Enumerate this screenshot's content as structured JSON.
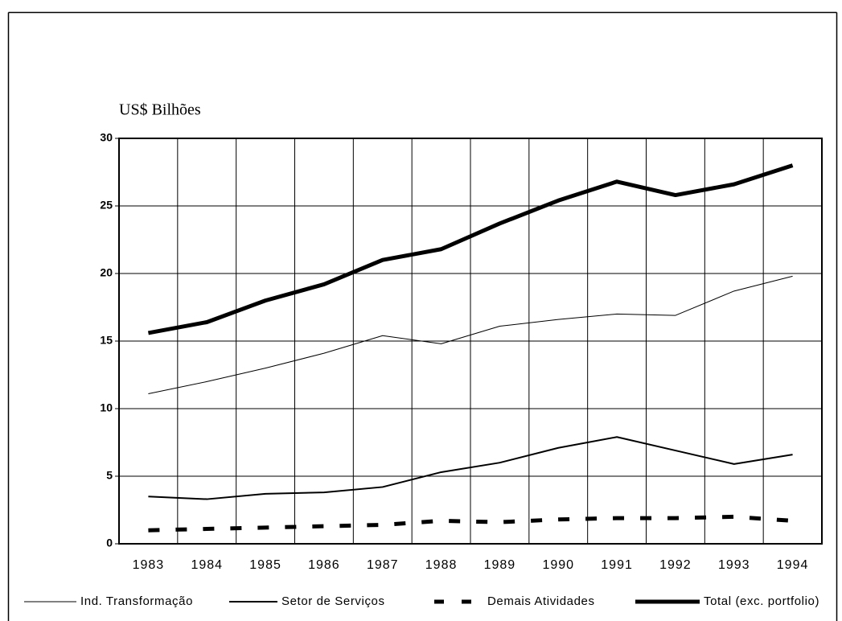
{
  "chart_data": {
    "type": "line",
    "y_label": "US$ Bilhões",
    "categories": [
      "1983",
      "1984",
      "1985",
      "1986",
      "1987",
      "1988",
      "1989",
      "1990",
      "1991",
      "1992",
      "1993",
      "1994"
    ],
    "series": [
      {
        "name": "Ind. Transformação",
        "color": "#000000",
        "values": [
          11.1,
          12.0,
          13.0,
          14.1,
          15.4,
          14.8,
          16.1,
          16.6,
          17.0,
          16.9,
          18.7,
          19.8
        ]
      },
      {
        "name": "Setor de Serviços",
        "color": "#000000",
        "values": [
          3.5,
          3.3,
          3.7,
          3.8,
          4.2,
          5.3,
          6.0,
          7.1,
          7.9,
          6.9,
          5.9,
          6.6
        ]
      },
      {
        "name": "Demais Atividades",
        "color": "#000000",
        "values": [
          1.0,
          1.1,
          1.2,
          1.3,
          1.4,
          1.7,
          1.6,
          1.8,
          1.9,
          1.9,
          2.0,
          1.7
        ]
      },
      {
        "name": "Total (exc. portfolio)",
        "color": "#000000",
        "values": [
          15.6,
          16.4,
          18.0,
          19.2,
          21.0,
          21.8,
          23.7,
          25.4,
          26.8,
          25.8,
          26.6,
          28.0
        ]
      }
    ],
    "ylim": [
      0,
      30
    ],
    "yticks": [
      0,
      5,
      10,
      15,
      20,
      25,
      30
    ],
    "grid": true,
    "legend": "bottom"
  }
}
